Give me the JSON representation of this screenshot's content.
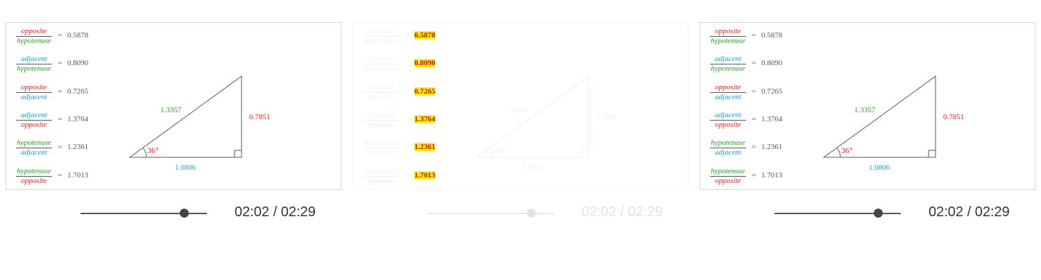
{
  "colors": {
    "opposite": "#e02020",
    "adjacent": "#1a9be0",
    "hypotenuse": "#22a022",
    "angle": "#e02020"
  },
  "ratios": [
    {
      "num": "opposite",
      "den": "hypotenuse",
      "value": "0.5878"
    },
    {
      "num": "adjacent",
      "den": "hypotenuse",
      "value": "0.8090"
    },
    {
      "num": "opposite",
      "den": "adjacent",
      "value": "0.7265"
    },
    {
      "num": "adjacent",
      "den": "opposite",
      "value": "1.3764"
    },
    {
      "num": "hypotenuse",
      "den": "adjacent",
      "value": "1.2361"
    },
    {
      "num": "hypotenuse",
      "den": "opposite",
      "value": "1.7013"
    }
  ],
  "triangle": {
    "hypotenuse": "1.3357",
    "opposite": "0.7851",
    "adjacent": "1.0806",
    "angle": "36°"
  },
  "player": {
    "time": "02:02 / 02:29",
    "progress": 0.82
  }
}
